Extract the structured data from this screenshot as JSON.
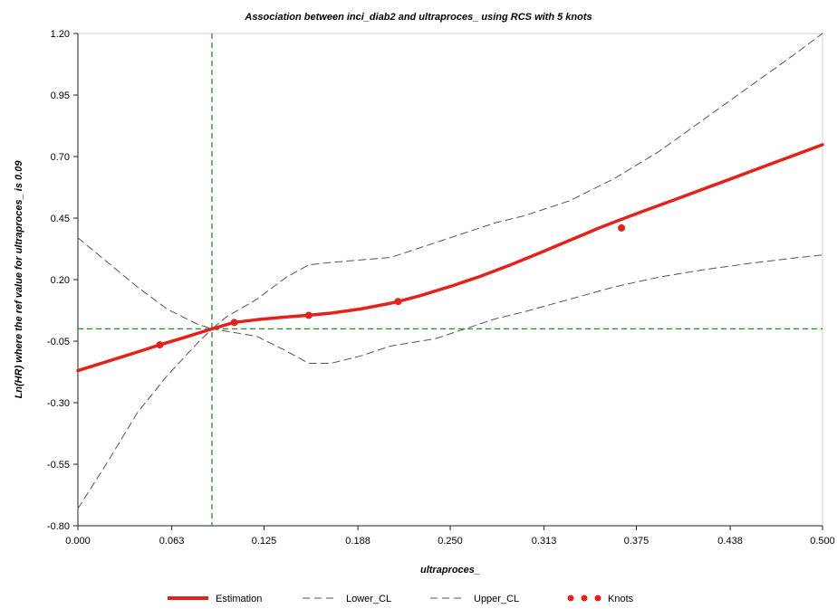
{
  "chart_data": {
    "type": "line",
    "title": "Association between inci_diab2 and ultraproces_ using RCS with 5 knots",
    "xlabel": "ultraproces_",
    "ylabel": "Ln(HR) where the ref value for ultraproces_ is 0.09",
    "xlim": [
      0.0,
      0.5
    ],
    "ylim": [
      -0.8,
      1.2
    ],
    "x_ticks": [
      "0.000",
      "0.063",
      "0.125",
      "0.188",
      "0.250",
      "0.313",
      "0.375",
      "0.438",
      "0.500"
    ],
    "y_ticks": [
      "1.20",
      "0.95",
      "0.70",
      "0.45",
      "0.20",
      "-0.05",
      "-0.30",
      "-0.55",
      "-0.80"
    ],
    "reference": {
      "x": 0.09,
      "y": 0.0
    },
    "grid": false,
    "legend_position": "bottom",
    "colors": {
      "estimation": "#e3231b",
      "ci": "#555555",
      "reference": "#2e8b2e",
      "axis": "#222222"
    },
    "series": [
      {
        "name": "Estimation",
        "style": "solid",
        "x": [
          0.0,
          0.02,
          0.04,
          0.055,
          0.07,
          0.09,
          0.105,
          0.12,
          0.14,
          0.155,
          0.17,
          0.19,
          0.21,
          0.215,
          0.23,
          0.25,
          0.27,
          0.29,
          0.31,
          0.33,
          0.35,
          0.365,
          0.38,
          0.4,
          0.42,
          0.44,
          0.46,
          0.48,
          0.5
        ],
        "y": [
          -0.17,
          -0.132,
          -0.094,
          -0.065,
          -0.038,
          0.0,
          0.026,
          0.037,
          0.048,
          0.055,
          0.064,
          0.081,
          0.104,
          0.111,
          0.135,
          0.172,
          0.213,
          0.259,
          0.308,
          0.359,
          0.41,
          0.445,
          0.479,
          0.523,
          0.568,
          0.613,
          0.658,
          0.703,
          0.748
        ]
      },
      {
        "name": "Lower_CL",
        "style": "dashed",
        "x": [
          0.0,
          0.02,
          0.04,
          0.06,
          0.08,
          0.09,
          0.1,
          0.12,
          0.14,
          0.155,
          0.17,
          0.19,
          0.21,
          0.24,
          0.26,
          0.28,
          0.3,
          0.33,
          0.36,
          0.39,
          0.42,
          0.45,
          0.48,
          0.5
        ],
        "y": [
          -0.73,
          -0.54,
          -0.34,
          -0.19,
          -0.06,
          0.0,
          -0.01,
          -0.03,
          -0.09,
          -0.14,
          -0.14,
          -0.11,
          -0.07,
          -0.04,
          0.0,
          0.04,
          0.07,
          0.12,
          0.17,
          0.21,
          0.24,
          0.265,
          0.287,
          0.3
        ]
      },
      {
        "name": "Upper_CL",
        "style": "dashed",
        "x": [
          0.0,
          0.02,
          0.04,
          0.06,
          0.08,
          0.09,
          0.1,
          0.12,
          0.14,
          0.155,
          0.17,
          0.19,
          0.21,
          0.24,
          0.26,
          0.28,
          0.3,
          0.33,
          0.36,
          0.39,
          0.42,
          0.45,
          0.48,
          0.5
        ],
        "y": [
          0.37,
          0.27,
          0.17,
          0.08,
          0.02,
          0.0,
          0.05,
          0.12,
          0.21,
          0.26,
          0.27,
          0.28,
          0.29,
          0.35,
          0.39,
          0.43,
          0.46,
          0.52,
          0.61,
          0.72,
          0.85,
          0.98,
          1.11,
          1.2
        ]
      }
    ],
    "knots": {
      "name": "Knots",
      "x": [
        0.055,
        0.105,
        0.155,
        0.215,
        0.365
      ],
      "y": [
        -0.065,
        0.026,
        0.055,
        0.111,
        0.41
      ]
    }
  }
}
